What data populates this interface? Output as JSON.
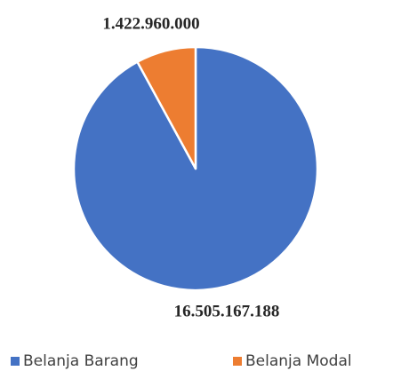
{
  "chart_data": {
    "type": "pie",
    "categories": [
      "Belanja Barang",
      "Belanja Modal"
    ],
    "values": [
      16505167188,
      1422960000
    ],
    "value_labels": [
      "16.505.167.188",
      "1.422.960.000"
    ],
    "colors": [
      "#4472c4",
      "#ed7d31"
    ],
    "legend": "bottom"
  }
}
